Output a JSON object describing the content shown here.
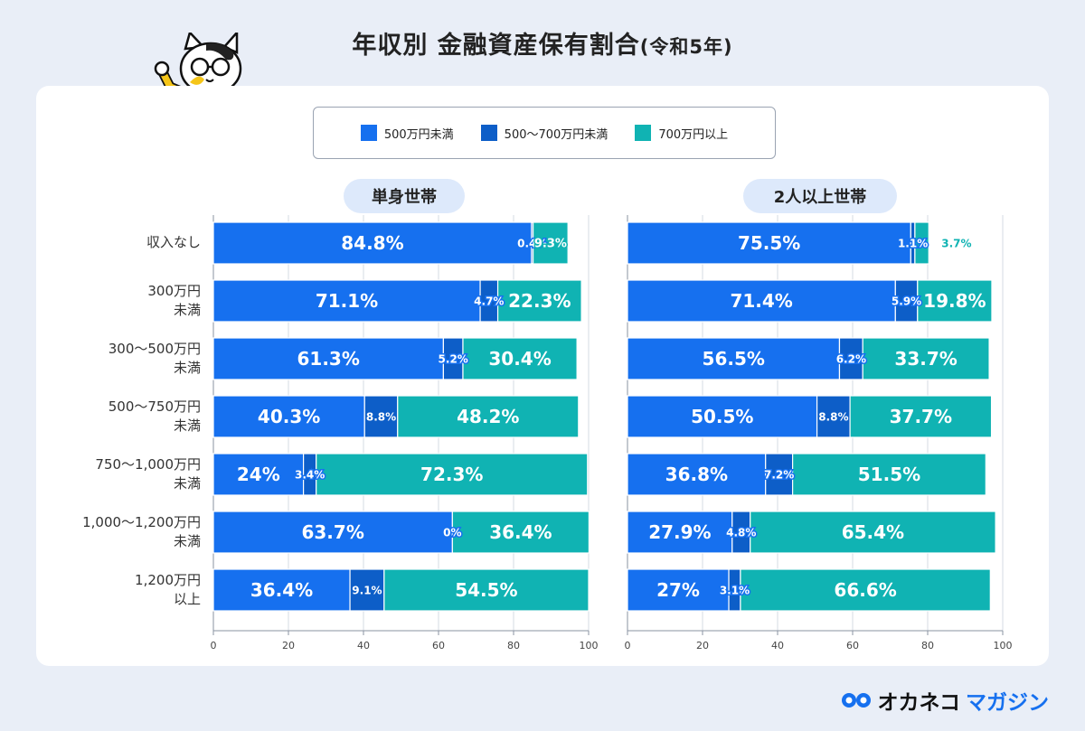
{
  "title_main": "年収別 金融資産保有割合",
  "title_sub": "(令和5年)",
  "brand": {
    "name": "オカネコ",
    "suffix": "マガジン"
  },
  "chart_data": [
    {
      "type": "bar",
      "orientation": "horizontal",
      "stacked": true,
      "title": "単身世帯",
      "categories": [
        [
          "収入なし"
        ],
        [
          "300万円",
          "未満"
        ],
        [
          "300〜500万円",
          "未満"
        ],
        [
          "500〜750万円",
          "未満"
        ],
        [
          "750〜1,000万円",
          "未満"
        ],
        [
          "1,000〜1,200万円",
          "未満"
        ],
        [
          "1,200万円",
          "以上"
        ]
      ],
      "series": [
        {
          "name": "500万円未満",
          "values": [
            84.8,
            71.1,
            61.3,
            40.3,
            24,
            63.7,
            36.4
          ]
        },
        {
          "name": "500〜700万円未満",
          "values": [
            0.4,
            4.7,
            5.2,
            8.8,
            3.4,
            0,
            9.1
          ]
        },
        {
          "name": "700万円以上",
          "values": [
            9.3,
            22.3,
            30.4,
            48.2,
            72.3,
            36.4,
            54.5
          ]
        }
      ],
      "xlim": [
        0,
        100
      ],
      "xticks": [
        0,
        20,
        40,
        60,
        80,
        100
      ],
      "grid": true
    },
    {
      "type": "bar",
      "orientation": "horizontal",
      "stacked": true,
      "title": "2人以上世帯",
      "categories": [
        [
          "収入なし"
        ],
        [
          "300万円",
          "未満"
        ],
        [
          "300〜500万円",
          "未満"
        ],
        [
          "500〜750万円",
          "未満"
        ],
        [
          "750〜1,000万円",
          "未満"
        ],
        [
          "1,000〜1,200万円",
          "未満"
        ],
        [
          "1,200万円",
          "以上"
        ]
      ],
      "series": [
        {
          "name": "500万円未満",
          "values": [
            75.5,
            71.4,
            56.5,
            50.5,
            36.8,
            27.9,
            27
          ]
        },
        {
          "name": "500〜700万円未満",
          "values": [
            1.1,
            5.9,
            6.2,
            8.8,
            7.2,
            4.8,
            3.1
          ]
        },
        {
          "name": "700万円以上",
          "values": [
            3.7,
            19.8,
            33.7,
            37.7,
            51.5,
            65.4,
            66.6
          ]
        }
      ],
      "xlim": [
        0,
        100
      ],
      "xticks": [
        0,
        20,
        40,
        60,
        80,
        100
      ],
      "grid": true
    }
  ],
  "legend": [
    {
      "label": "500万円未満",
      "color": "#1670ef"
    },
    {
      "label": "500〜700万円未満",
      "color": "#0d5ec8"
    },
    {
      "label": "700万円以上",
      "color": "#10b3b3"
    }
  ],
  "colors": {
    "s0": "#1670ef",
    "s1": "#0d5ec8",
    "s2": "#10b3b3",
    "label_dark": "#1670ef",
    "label_teal": "#10b3b3"
  },
  "icons": {
    "mascot": "cat-in-yellow-suit-icon",
    "brand_logo": "brand-logo-icon"
  }
}
